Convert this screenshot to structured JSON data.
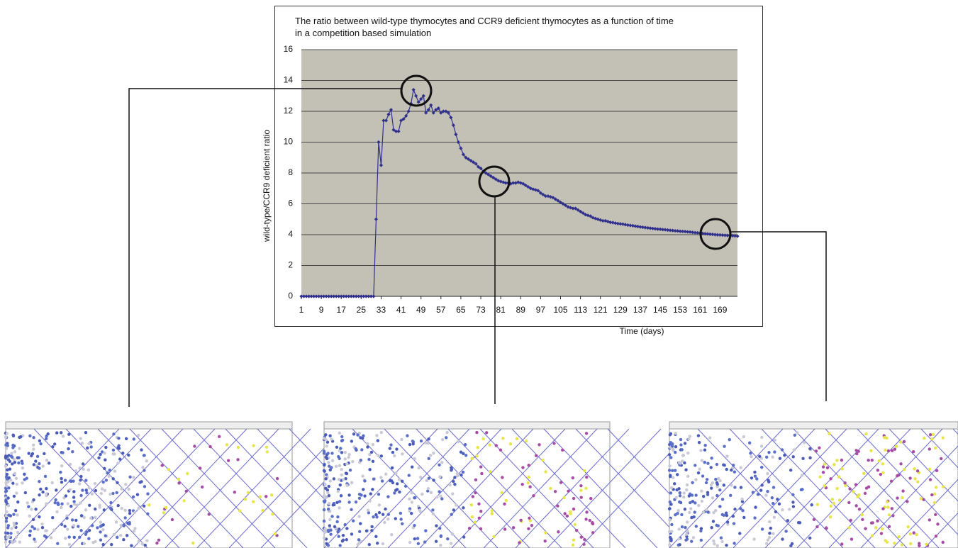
{
  "chart_data": {
    "type": "line",
    "title": [
      "The ratio between wild-type thymocytes and CCR9 deficient thymocytes as a function of time",
      "in a competition based simulation"
    ],
    "x_label": "Time (days)",
    "y_label": "wild-type/CCR9 deficient ratio",
    "xlim": [
      1,
      176
    ],
    "ylim": [
      0,
      16
    ],
    "xticks": [
      1,
      9,
      17,
      25,
      33,
      41,
      49,
      57,
      65,
      73,
      81,
      89,
      97,
      105,
      113,
      121,
      129,
      137,
      145,
      153,
      161,
      169
    ],
    "yticks": [
      0,
      2,
      4,
      6,
      8,
      10,
      12,
      14,
      16
    ],
    "grid": true,
    "color": "#2f2f8c",
    "x": [
      1,
      2,
      3,
      4,
      5,
      6,
      7,
      8,
      9,
      10,
      11,
      12,
      13,
      14,
      15,
      16,
      17,
      18,
      19,
      20,
      21,
      22,
      23,
      24,
      25,
      26,
      27,
      28,
      29,
      30,
      31,
      32,
      33,
      34,
      35,
      36,
      37,
      38,
      39,
      40,
      41,
      42,
      43,
      44,
      45,
      46,
      47,
      48,
      49,
      50,
      51,
      52,
      53,
      54,
      55,
      56,
      57,
      58,
      59,
      60,
      61,
      62,
      63,
      64,
      65,
      66,
      67,
      68,
      69,
      70,
      71,
      72,
      73,
      74,
      75,
      76,
      77,
      78,
      79,
      80,
      81,
      82,
      83,
      84,
      85,
      86,
      87,
      88,
      89,
      90,
      91,
      92,
      93,
      94,
      95,
      96,
      97,
      98,
      99,
      100,
      101,
      102,
      103,
      104,
      105,
      106,
      107,
      108,
      109,
      110,
      111,
      112,
      113,
      114,
      115,
      116,
      117,
      118,
      119,
      120,
      121,
      122,
      123,
      124,
      125,
      126,
      127,
      128,
      129,
      130,
      131,
      132,
      133,
      134,
      135,
      136,
      137,
      138,
      139,
      140,
      141,
      142,
      143,
      144,
      145,
      146,
      147,
      148,
      149,
      150,
      151,
      152,
      153,
      154,
      155,
      156,
      157,
      158,
      159,
      160,
      161,
      162,
      163,
      164,
      165,
      166,
      167,
      168,
      169,
      170,
      171,
      172,
      173,
      174,
      175,
      176
    ],
    "values": [
      0,
      0,
      0,
      0,
      0,
      0,
      0,
      0,
      0,
      0,
      0,
      0,
      0,
      0,
      0,
      0,
      0,
      0,
      0,
      0,
      0,
      0,
      0,
      0,
      0,
      0,
      0,
      0,
      0,
      0,
      5,
      10,
      8.5,
      11.4,
      11.4,
      11.8,
      12.1,
      10.8,
      10.7,
      10.7,
      11.4,
      11.5,
      11.7,
      12,
      12.5,
      13.4,
      13,
      12.6,
      12.8,
      13,
      11.9,
      12.1,
      12.4,
      11.9,
      12.1,
      12.2,
      11.9,
      12,
      12,
      11.9,
      11.6,
      11.1,
      10.5,
      10,
      9.6,
      9.2,
      9,
      8.9,
      8.8,
      8.7,
      8.6,
      8.4,
      8.3,
      8.1,
      8,
      7.9,
      7.8,
      7.7,
      7.6,
      7.5,
      7.45,
      7.4,
      7.35,
      7.35,
      7.3,
      7.35,
      7.35,
      7.4,
      7.35,
      7.3,
      7.2,
      7.1,
      7,
      6.95,
      6.9,
      6.85,
      6.7,
      6.6,
      6.5,
      6.5,
      6.45,
      6.4,
      6.3,
      6.2,
      6.1,
      6,
      5.9,
      5.8,
      5.75,
      5.7,
      5.7,
      5.6,
      5.5,
      5.4,
      5.3,
      5.25,
      5.2,
      5.1,
      5.05,
      5,
      4.95,
      4.9,
      4.9,
      4.85,
      4.8,
      4.78,
      4.75,
      4.72,
      4.7,
      4.68,
      4.65,
      4.62,
      4.6,
      4.58,
      4.55,
      4.53,
      4.5,
      4.48,
      4.46,
      4.44,
      4.42,
      4.4,
      4.38,
      4.36,
      4.35,
      4.33,
      4.32,
      4.3,
      4.28,
      4.27,
      4.25,
      4.24,
      4.22,
      4.21,
      4.2,
      4.18,
      4.17,
      4.15,
      4.13,
      4.12,
      4.1,
      4.08,
      4.06,
      4.05,
      4.03,
      4.02,
      4,
      3.99,
      3.98,
      3.97,
      3.96,
      3.95,
      3.94,
      3.93,
      3.92,
      3.9
    ]
  }
}
